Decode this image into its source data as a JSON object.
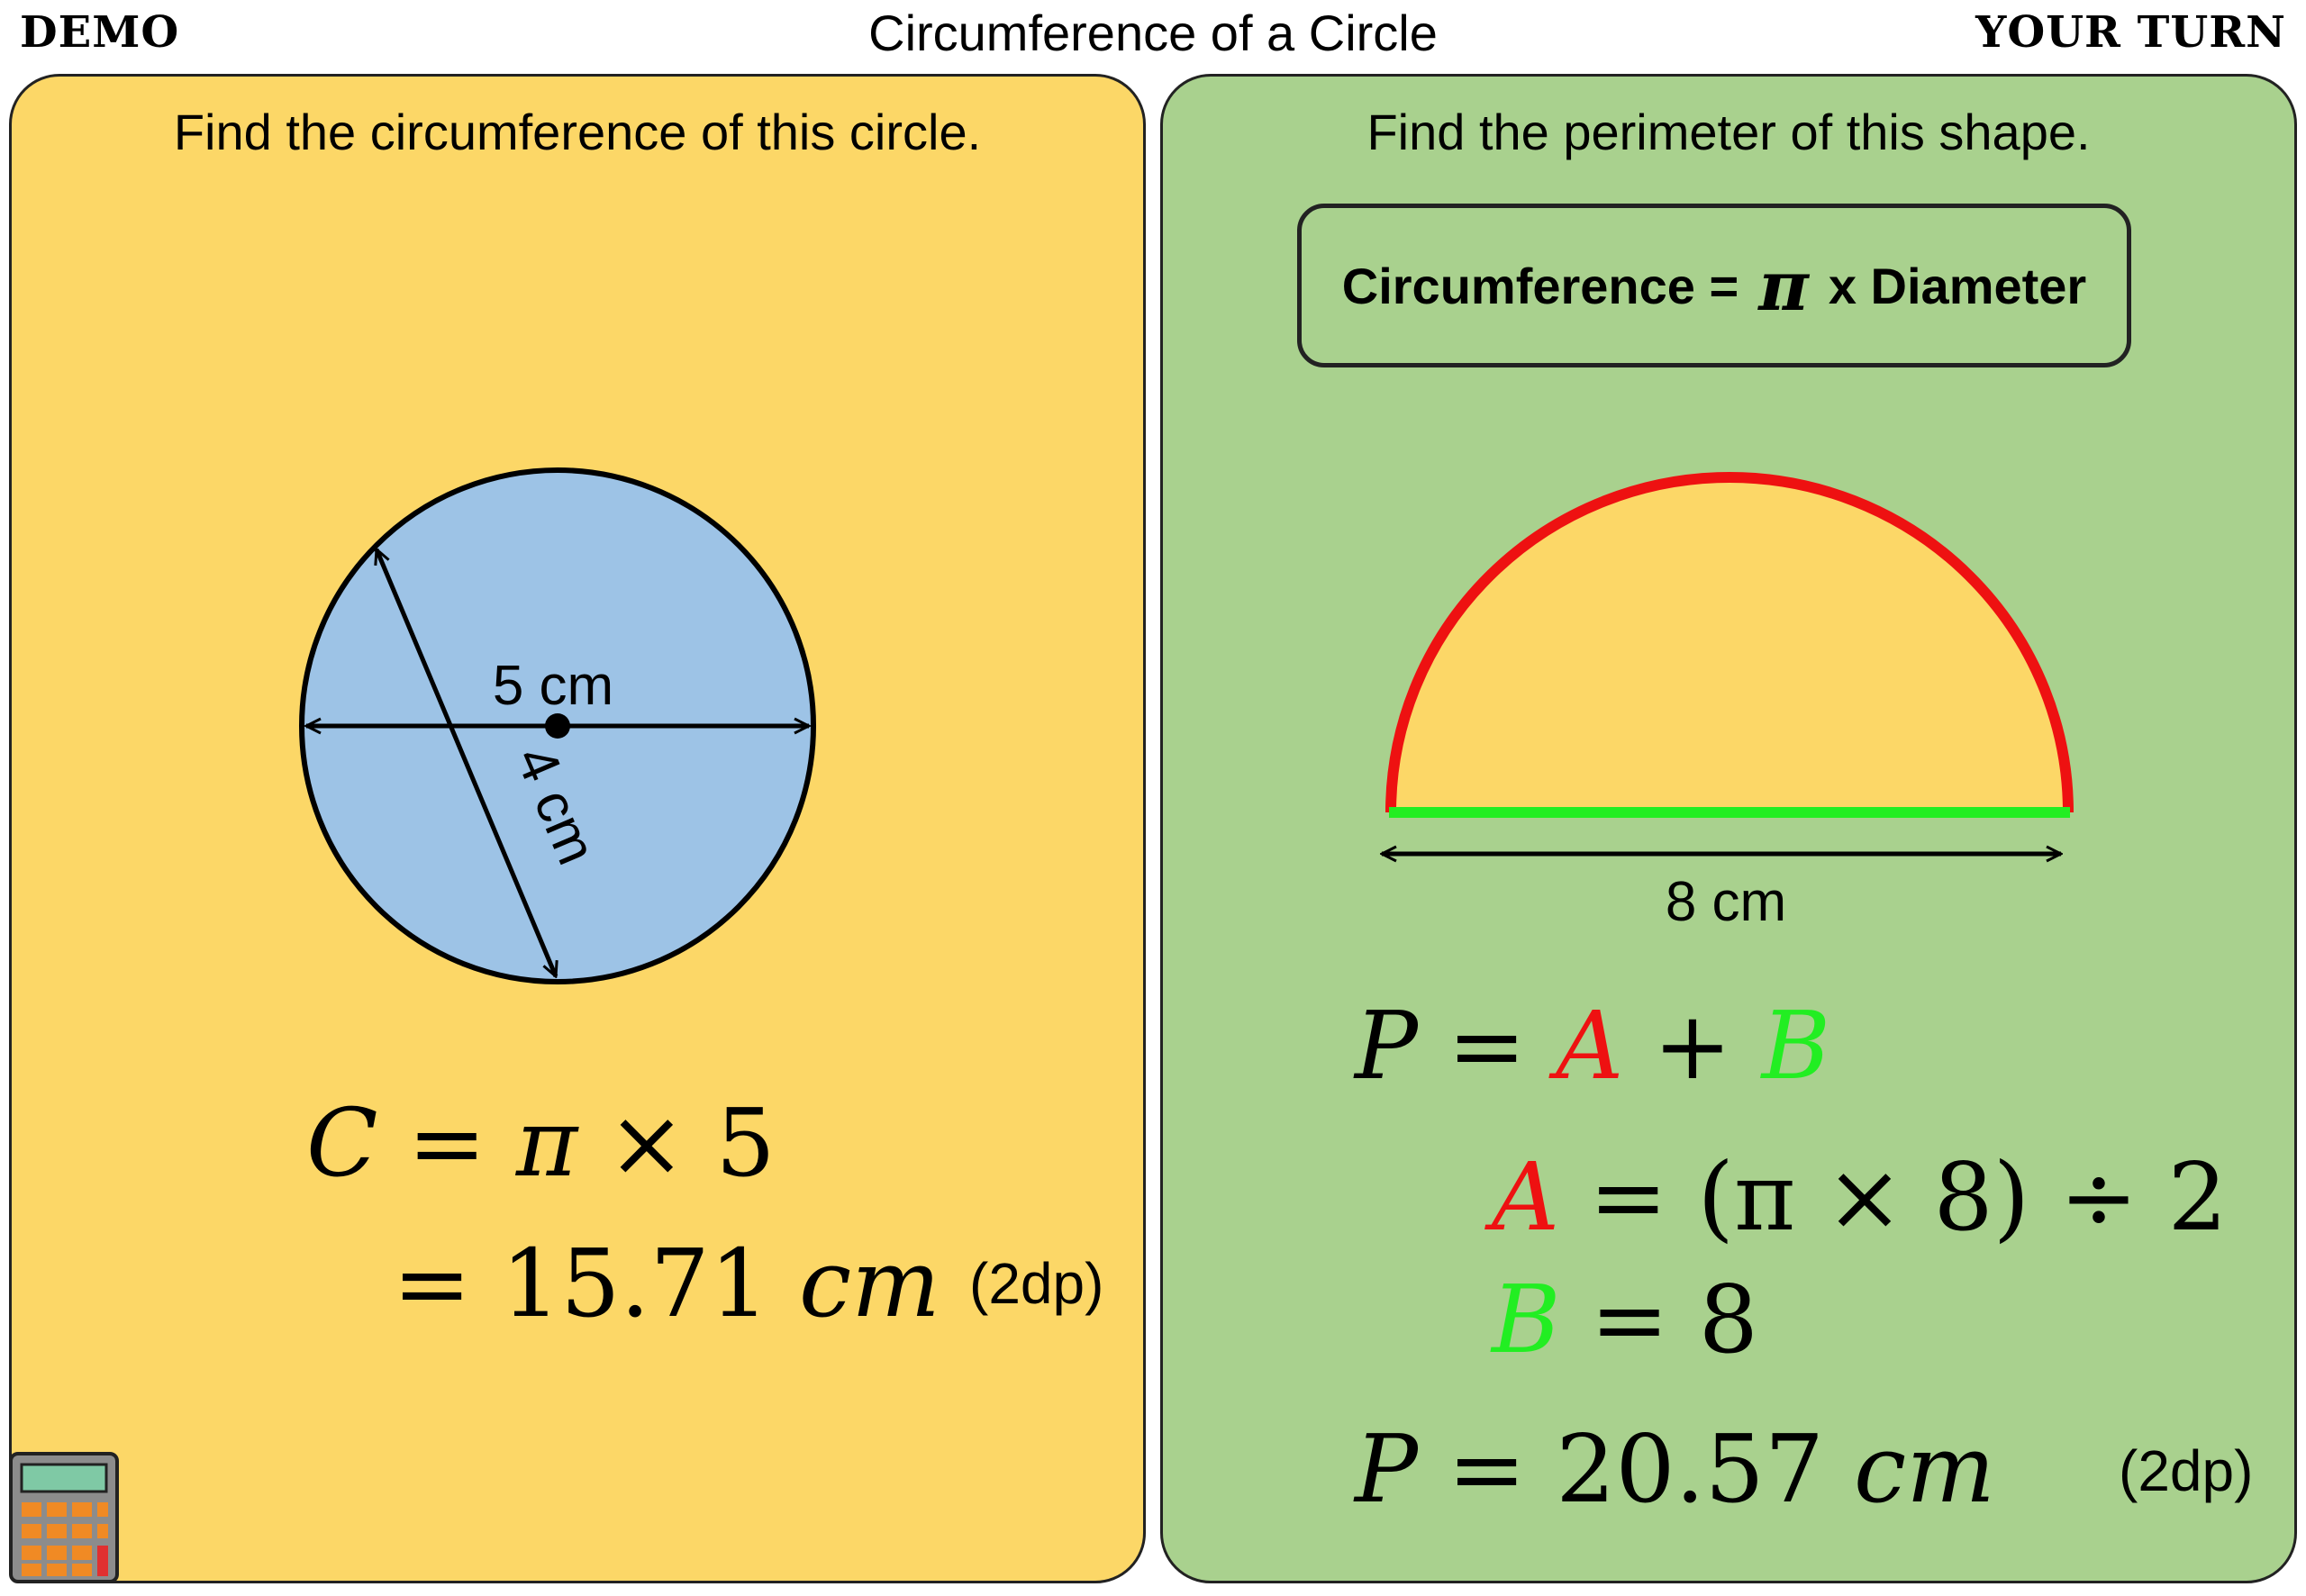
{
  "header": {
    "left_label": "DEMO",
    "title": "Circumference of a Circle",
    "right_label": "YOUR TURN"
  },
  "demo": {
    "prompt": "Find the circumference of this circle.",
    "labels": {
      "horizontal": "5 cm",
      "diagonal": "4 cm"
    },
    "line1": {
      "lhs": "C",
      "eq": "=",
      "pi": "π",
      "times": "×",
      "value": "5"
    },
    "line2": {
      "eq": "=",
      "value": "15.71",
      "unit": "cm"
    },
    "rounding": "(2dp)",
    "icon": "calculator-icon"
  },
  "your_turn": {
    "prompt": "Find the perimeter of this shape.",
    "formula": {
      "left": "Circumference =",
      "pi": "π",
      "right": "x Diameter"
    },
    "diameter_label": "8 cm",
    "eq1": {
      "lhs": "P",
      "eq": "=",
      "a": "A",
      "plus": "+",
      "b": "B"
    },
    "eq2": {
      "a": "A",
      "eq": "=",
      "expr": "(π × 8) ÷ 2"
    },
    "eq3": {
      "b": "B",
      "eq": "=",
      "value": "8"
    },
    "eq4": {
      "lhs": "P",
      "eq": "=",
      "value": "20.57",
      "unit": "cm"
    },
    "rounding": "(2dp)"
  },
  "colors": {
    "demo_panel": "#fcd767",
    "turn_panel": "#a9d18e",
    "circle_fill": "#9dc3e6",
    "arc_red": "#ee1111",
    "diameter_green": "#22ee22",
    "semicircle_fill": "#fcd767"
  }
}
